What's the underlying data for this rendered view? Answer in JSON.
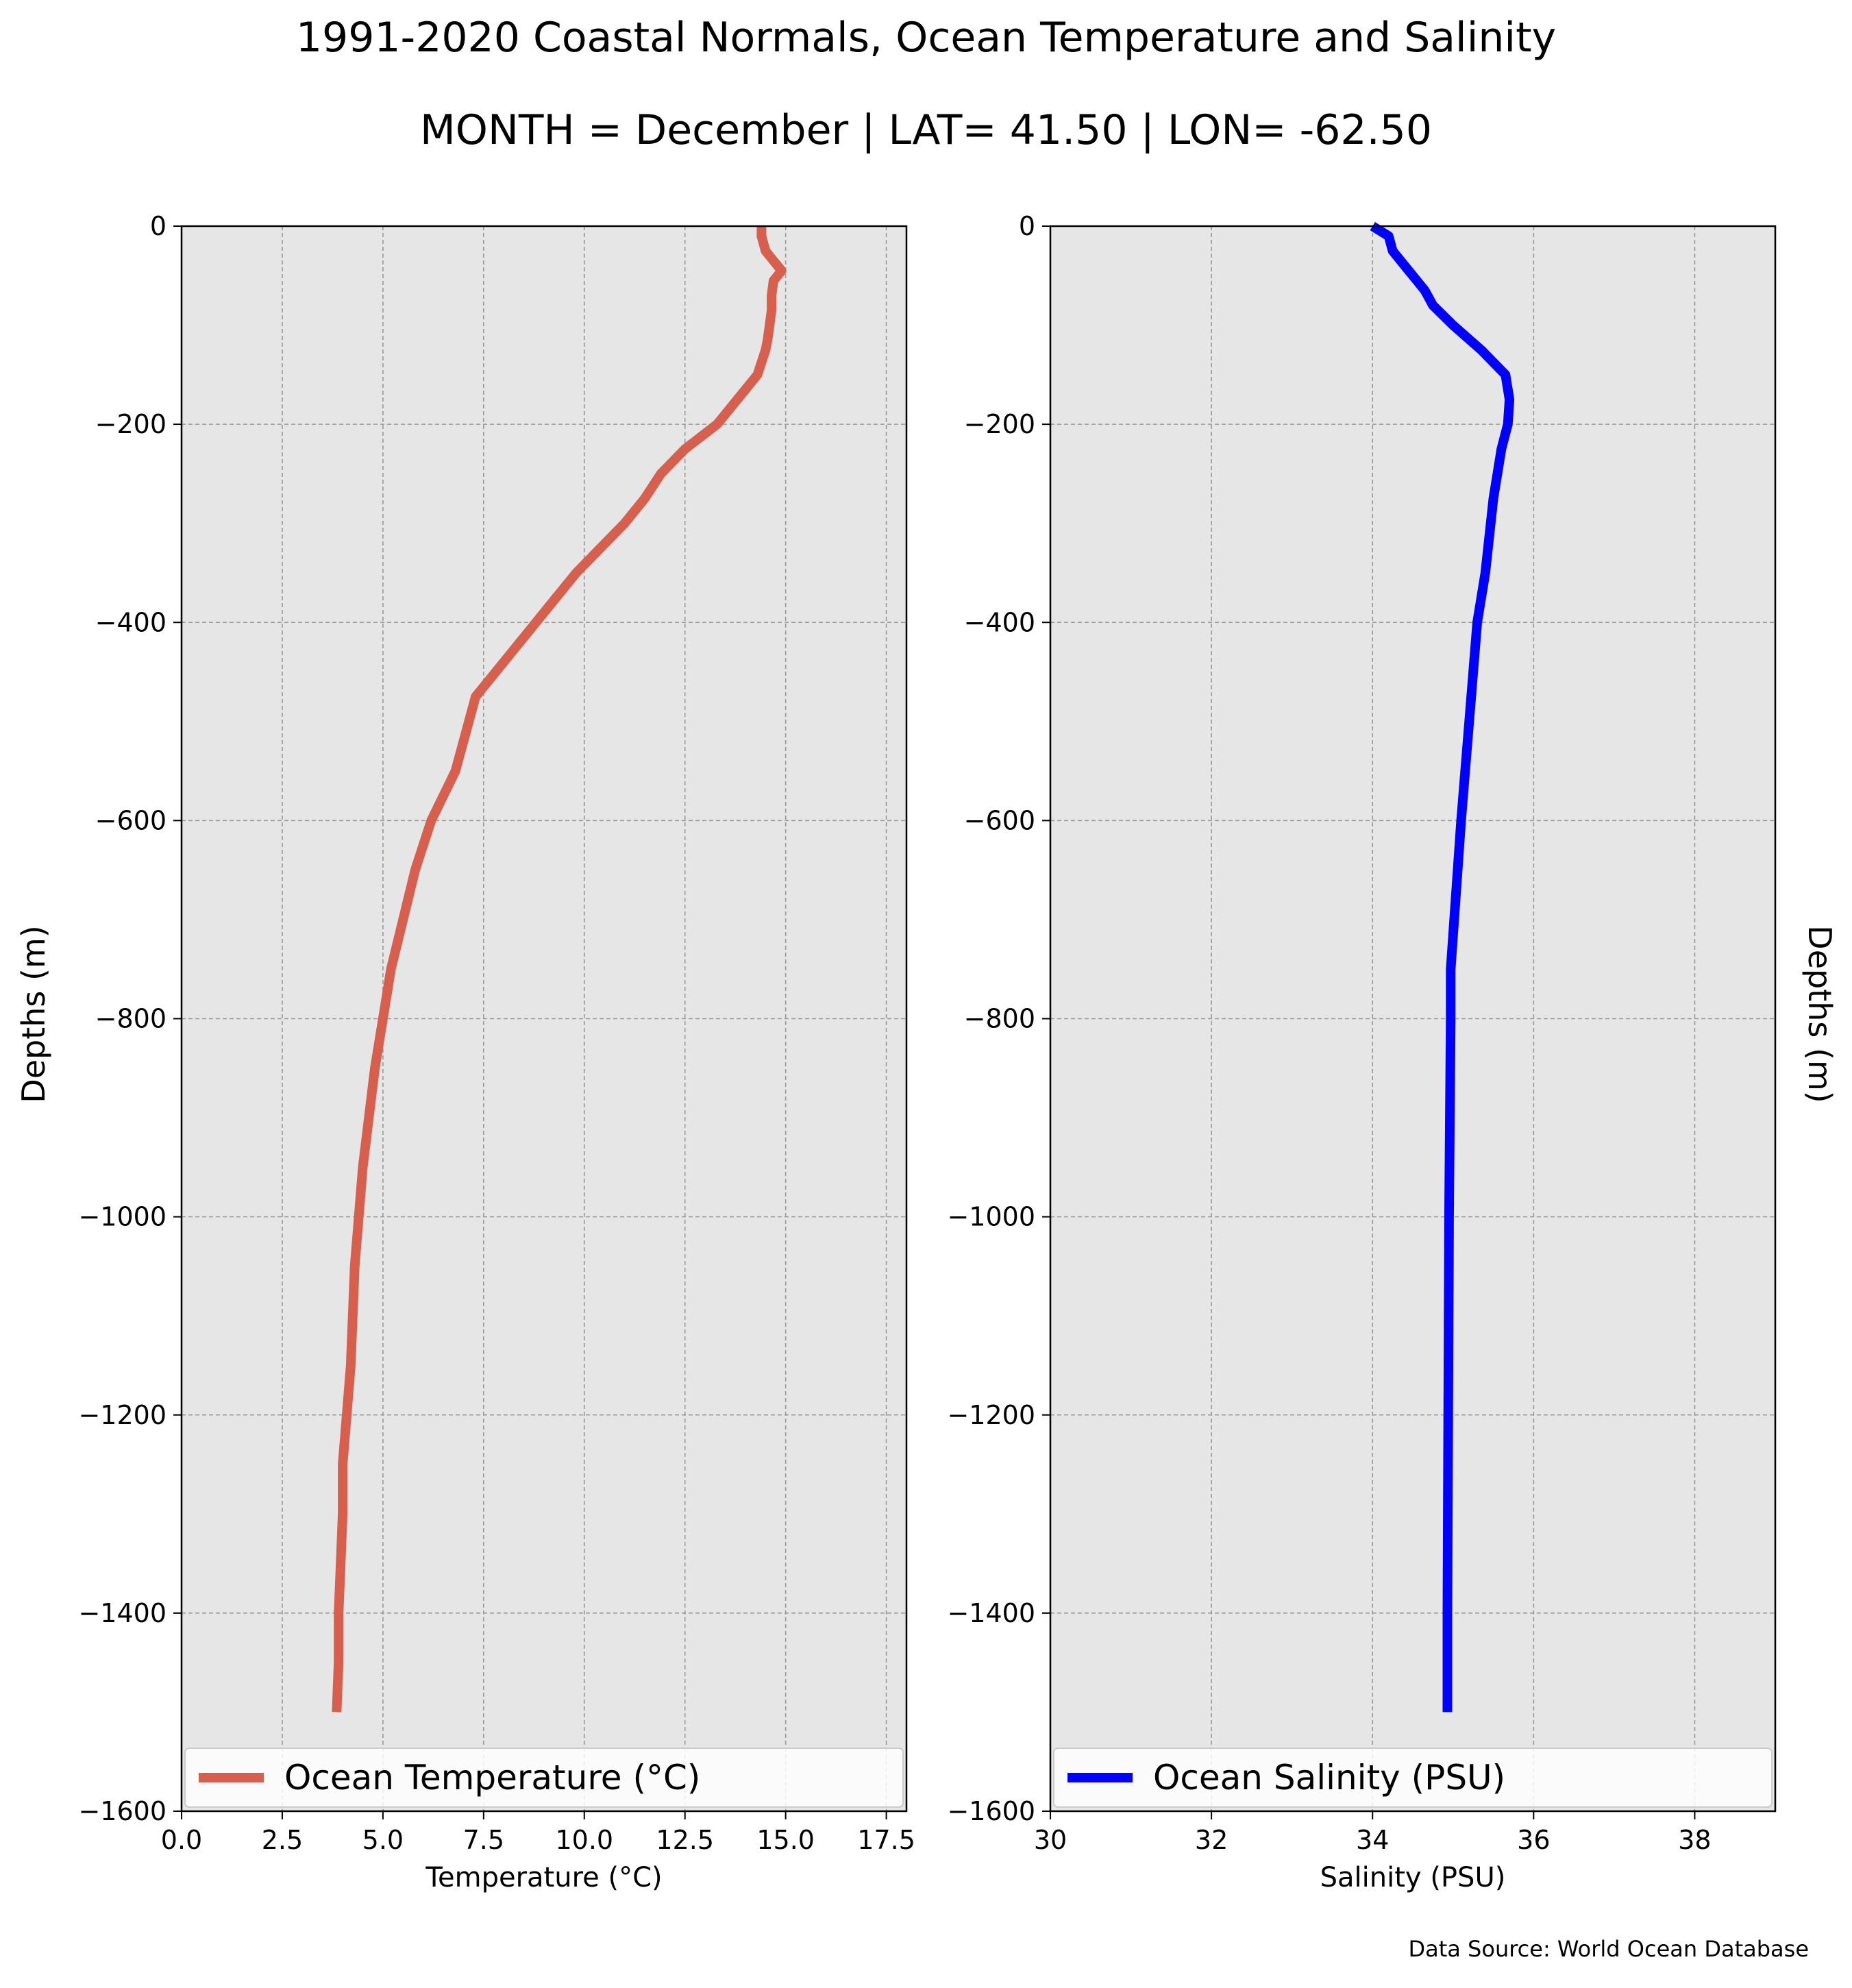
{
  "figure": {
    "title": "1991-2020 Coastal Normals, Ocean Temperature and Salinity",
    "subtitle": "MONTH = December | LAT= 41.50 | LON= -62.50",
    "source": "Data Source: World Ocean Database",
    "background_color": "#e6e6e6",
    "grid_color": "#999999"
  },
  "chart_data": [
    {
      "type": "line",
      "xlabel": "Temperature (°C)",
      "ylabel": "Depths (m)",
      "xlim": [
        0,
        18
      ],
      "ylim": [
        -1600,
        0
      ],
      "xticks": [
        0,
        2.5,
        5,
        7.5,
        10,
        12.5,
        15,
        17.5
      ],
      "xtick_labels": [
        "0.0",
        "2.5",
        "5.0",
        "7.5",
        "10.0",
        "12.5",
        "15.0",
        "17.5"
      ],
      "yticks": [
        0,
        -200,
        -400,
        -600,
        -800,
        -1000,
        -1200,
        -1400,
        -1600
      ],
      "ytick_labels": [
        "0",
        "−200",
        "−400",
        "−600",
        "−800",
        "−1000",
        "−1200",
        "−1400",
        "−1600"
      ],
      "grid": true,
      "legend_position": "bottom",
      "series": [
        {
          "name": "Ocean Temperature (°C)",
          "color": "#d65f4e",
          "x": [
            14.4,
            14.4,
            14.5,
            14.7,
            14.9,
            14.7,
            14.65,
            14.65,
            14.6,
            14.55,
            14.5,
            14.3,
            13.3,
            12.5,
            11.9,
            11.5,
            11.0,
            10.4,
            9.8,
            9.3,
            8.8,
            8.3,
            7.8,
            7.3,
            6.8,
            6.2,
            5.8,
            5.5,
            5.2,
            5.0,
            4.8,
            4.5,
            4.4,
            4.3,
            4.2,
            4.0,
            4.0,
            3.95,
            3.9,
            3.9,
            3.85
          ],
          "y": [
            0,
            -10,
            -25,
            -35,
            -45,
            -55,
            -70,
            -85,
            -100,
            -115,
            -125,
            -150,
            -200,
            -225,
            -250,
            -275,
            -300,
            -325,
            -350,
            -375,
            -400,
            -425,
            -450,
            -475,
            -550,
            -600,
            -650,
            -700,
            -750,
            -800,
            -850,
            -950,
            -1000,
            -1050,
            -1150,
            -1250,
            -1300,
            -1350,
            -1400,
            -1450,
            -1500
          ]
        }
      ]
    },
    {
      "type": "line",
      "xlabel": "Salinity (PSU)",
      "ylabel": "Depths (m)",
      "xlim": [
        30,
        39
      ],
      "ylim": [
        -1600,
        0
      ],
      "xticks": [
        30,
        32,
        34,
        36,
        38
      ],
      "xtick_labels": [
        "30",
        "32",
        "34",
        "36",
        "38"
      ],
      "yticks": [
        0,
        -200,
        -400,
        -600,
        -800,
        -1000,
        -1200,
        -1400,
        -1600
      ],
      "ytick_labels": [
        "0",
        "−200",
        "−400",
        "−600",
        "−800",
        "−1000",
        "−1200",
        "−1400",
        "−1600"
      ],
      "grid": true,
      "legend_position": "bottom",
      "series": [
        {
          "name": "Ocean Salinity (PSU)",
          "color": "#0000ff",
          "x": [
            34.0,
            34.2,
            34.25,
            34.4,
            34.55,
            34.65,
            34.75,
            35.0,
            35.35,
            35.65,
            35.7,
            35.68,
            35.6,
            35.5,
            35.4,
            35.3,
            35.2,
            35.1,
            34.97,
            34.97,
            34.96,
            34.95,
            34.94,
            34.93,
            34.93
          ],
          "y": [
            0,
            -10,
            -25,
            -40,
            -55,
            -65,
            -80,
            -100,
            -125,
            -150,
            -175,
            -200,
            -225,
            -275,
            -350,
            -400,
            -500,
            -600,
            -750,
            -800,
            -900,
            -1000,
            -1200,
            -1400,
            -1500
          ]
        }
      ]
    }
  ]
}
